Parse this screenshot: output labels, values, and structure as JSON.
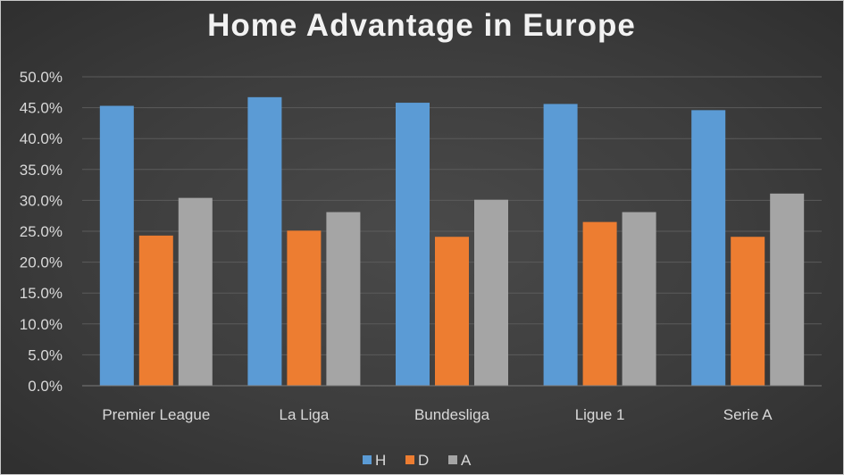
{
  "chart_data": {
    "type": "bar",
    "title": "Home Advantage in Europe",
    "categories": [
      "Premier League",
      "La Liga",
      "Bundesliga",
      "Ligue 1",
      "Serie A"
    ],
    "series": [
      {
        "name": "H",
        "color": "#5b9bd5",
        "values": [
          45.3,
          46.7,
          45.8,
          45.6,
          44.6
        ]
      },
      {
        "name": "D",
        "color": "#ed7d31",
        "values": [
          24.3,
          25.1,
          24.1,
          26.5,
          24.1
        ]
      },
      {
        "name": "A",
        "color": "#a5a5a5",
        "values": [
          30.4,
          28.1,
          30.1,
          28.1,
          31.1
        ]
      }
    ],
    "ylim": [
      0,
      50
    ],
    "yticks": [
      "0.0%",
      "5.0%",
      "10.0%",
      "15.0%",
      "20.0%",
      "25.0%",
      "30.0%",
      "35.0%",
      "40.0%",
      "45.0%",
      "50.0%"
    ],
    "ytick_values": [
      0,
      5,
      10,
      15,
      20,
      25,
      30,
      35,
      40,
      45,
      50
    ],
    "grid": true,
    "legend_position": "bottom"
  }
}
